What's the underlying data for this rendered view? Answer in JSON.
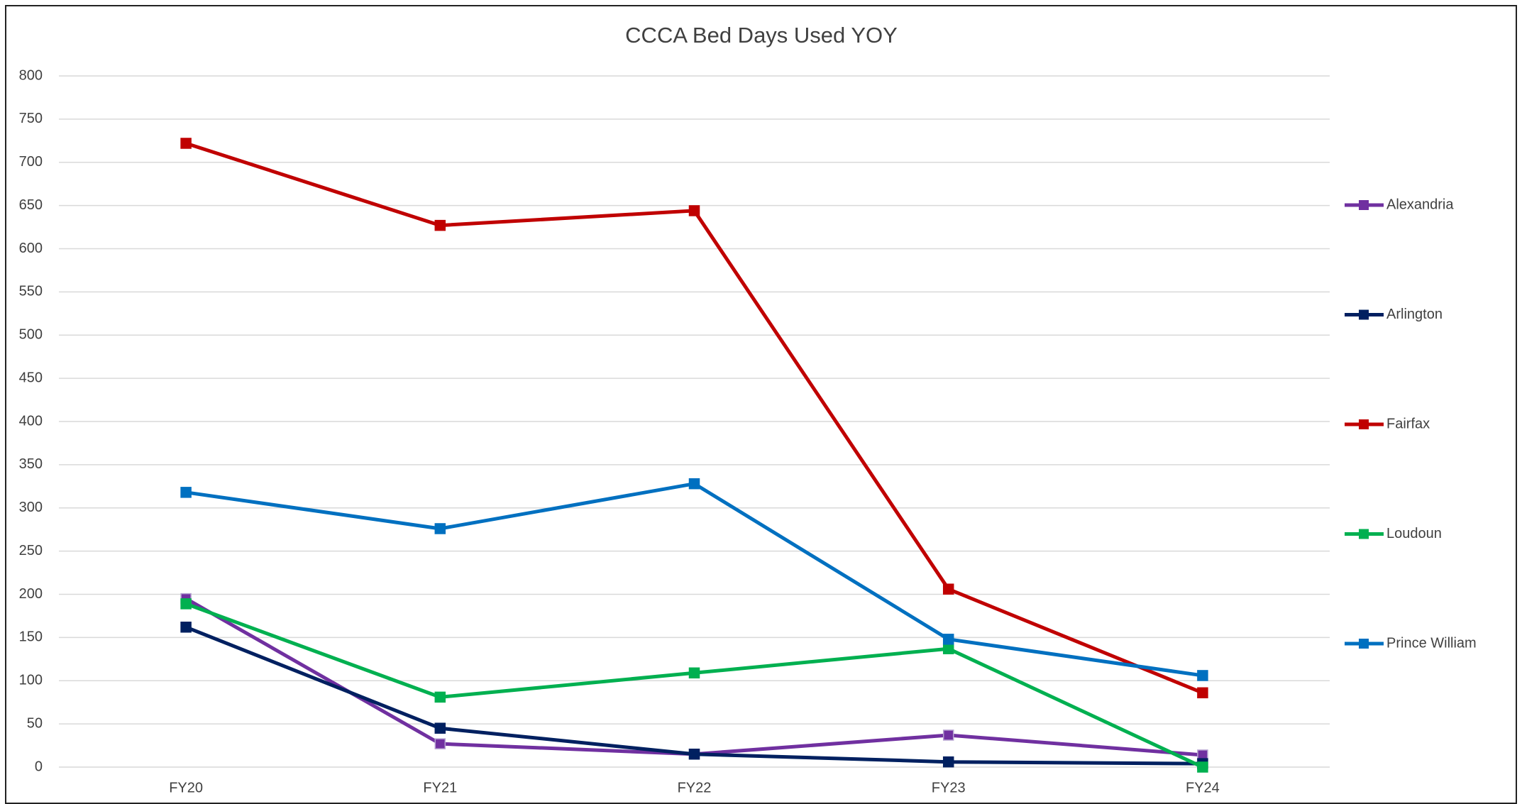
{
  "chart_data": {
    "type": "line",
    "title": "CCCA Bed Days Used YOY",
    "categories": [
      "FY20",
      "FY21",
      "FY22",
      "FY23",
      "FY24"
    ],
    "series": [
      {
        "name": "Alexandria",
        "color": "#7030a0",
        "values": [
          195,
          27,
          15,
          37,
          14
        ]
      },
      {
        "name": "Arlington",
        "color": "#002060",
        "values": [
          162,
          45,
          15,
          6,
          4
        ]
      },
      {
        "name": "Fairfax",
        "color": "#c00000",
        "values": [
          722,
          627,
          644,
          206,
          86
        ]
      },
      {
        "name": "Loudoun",
        "color": "#00b050",
        "values": [
          189,
          81,
          109,
          137,
          0
        ]
      },
      {
        "name": "Prince William",
        "color": "#0070c0",
        "values": [
          318,
          276,
          328,
          148,
          106
        ]
      }
    ],
    "ylim": [
      0,
      800
    ],
    "yticks": [
      0,
      50,
      100,
      150,
      200,
      250,
      300,
      350,
      400,
      450,
      500,
      550,
      600,
      650,
      700,
      750,
      800
    ],
    "grid": true,
    "legend": "right"
  }
}
